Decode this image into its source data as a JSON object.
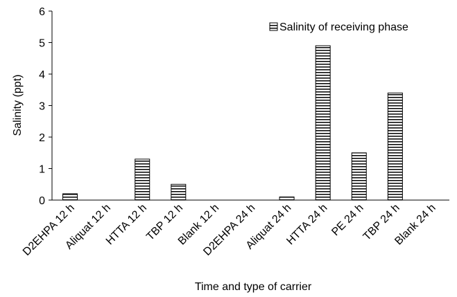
{
  "chart_data": {
    "type": "bar",
    "xlabel": "Time and type of carrier",
    "ylabel": "Salinity (ppt)",
    "ylim": [
      0,
      6
    ],
    "yticks": [
      0,
      1,
      2,
      3,
      4,
      5,
      6
    ],
    "categories": [
      "D2EHPA 12 h",
      "Aliquat 12 h",
      "HTTA 12 h",
      "TBP 12 h",
      "Blank 12 h",
      "D2EHPA 24 h",
      "Aliquat 24 h",
      "HTTA 24 h",
      "PE 24 h",
      "TBP 24 h",
      "Blank 24 h"
    ],
    "series": [
      {
        "name": "Salinity of receiving phase",
        "values": [
          0.2,
          0,
          1.3,
          0.5,
          0,
          0,
          0.1,
          4.9,
          1.5,
          3.4,
          0
        ],
        "fill": "horizontal-stripes"
      }
    ],
    "legend": "top-right",
    "grid": false
  }
}
